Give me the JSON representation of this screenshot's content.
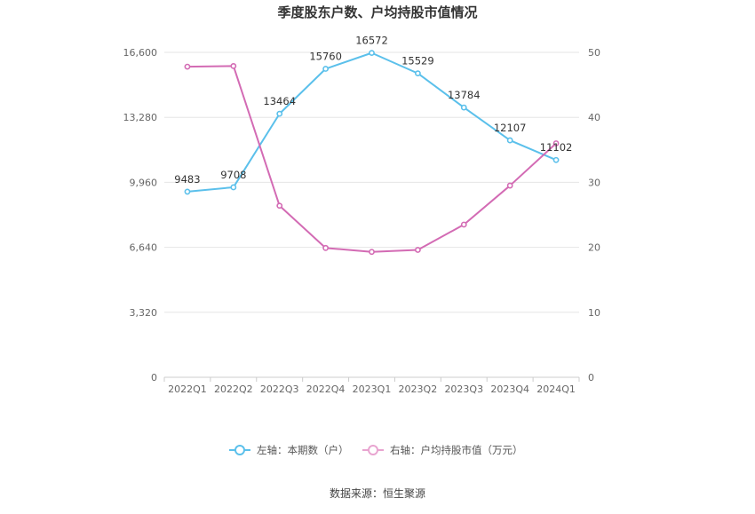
{
  "chart_data": {
    "type": "line",
    "title": "季度股东户数、户均持股市值情况",
    "categories": [
      "2022Q1",
      "2022Q2",
      "2022Q3",
      "2022Q4",
      "2023Q1",
      "2023Q2",
      "2023Q3",
      "2023Q4",
      "2024Q1"
    ],
    "left_axis": {
      "ticks": [
        "0",
        "3,320",
        "6,640",
        "9,960",
        "13,280",
        "16,600"
      ],
      "range": [
        0,
        16600
      ]
    },
    "right_axis": {
      "ticks": [
        "0",
        "10",
        "20",
        "30",
        "40",
        "50"
      ],
      "range": [
        0,
        50
      ]
    },
    "series": [
      {
        "name": "左轴：本期数（户）",
        "axis": "left",
        "color": "#5bc0eb",
        "values": [
          9483,
          9708,
          13464,
          15760,
          16572,
          15529,
          13784,
          12107,
          11102
        ],
        "labels": [
          "9483",
          "9708",
          "13464",
          "15760",
          "16572",
          "15529",
          "13784",
          "12107",
          "11102"
        ]
      },
      {
        "name": "右轴：户均持股市值（万元）",
        "axis": "right",
        "color": "#d36bb4",
        "values": [
          47.8,
          47.9,
          26.4,
          19.9,
          19.3,
          19.6,
          23.5,
          29.5,
          36.0
        ]
      }
    ],
    "grid": true,
    "legend_position": "bottom"
  },
  "footer": {
    "source": "数据来源：恒生聚源"
  }
}
